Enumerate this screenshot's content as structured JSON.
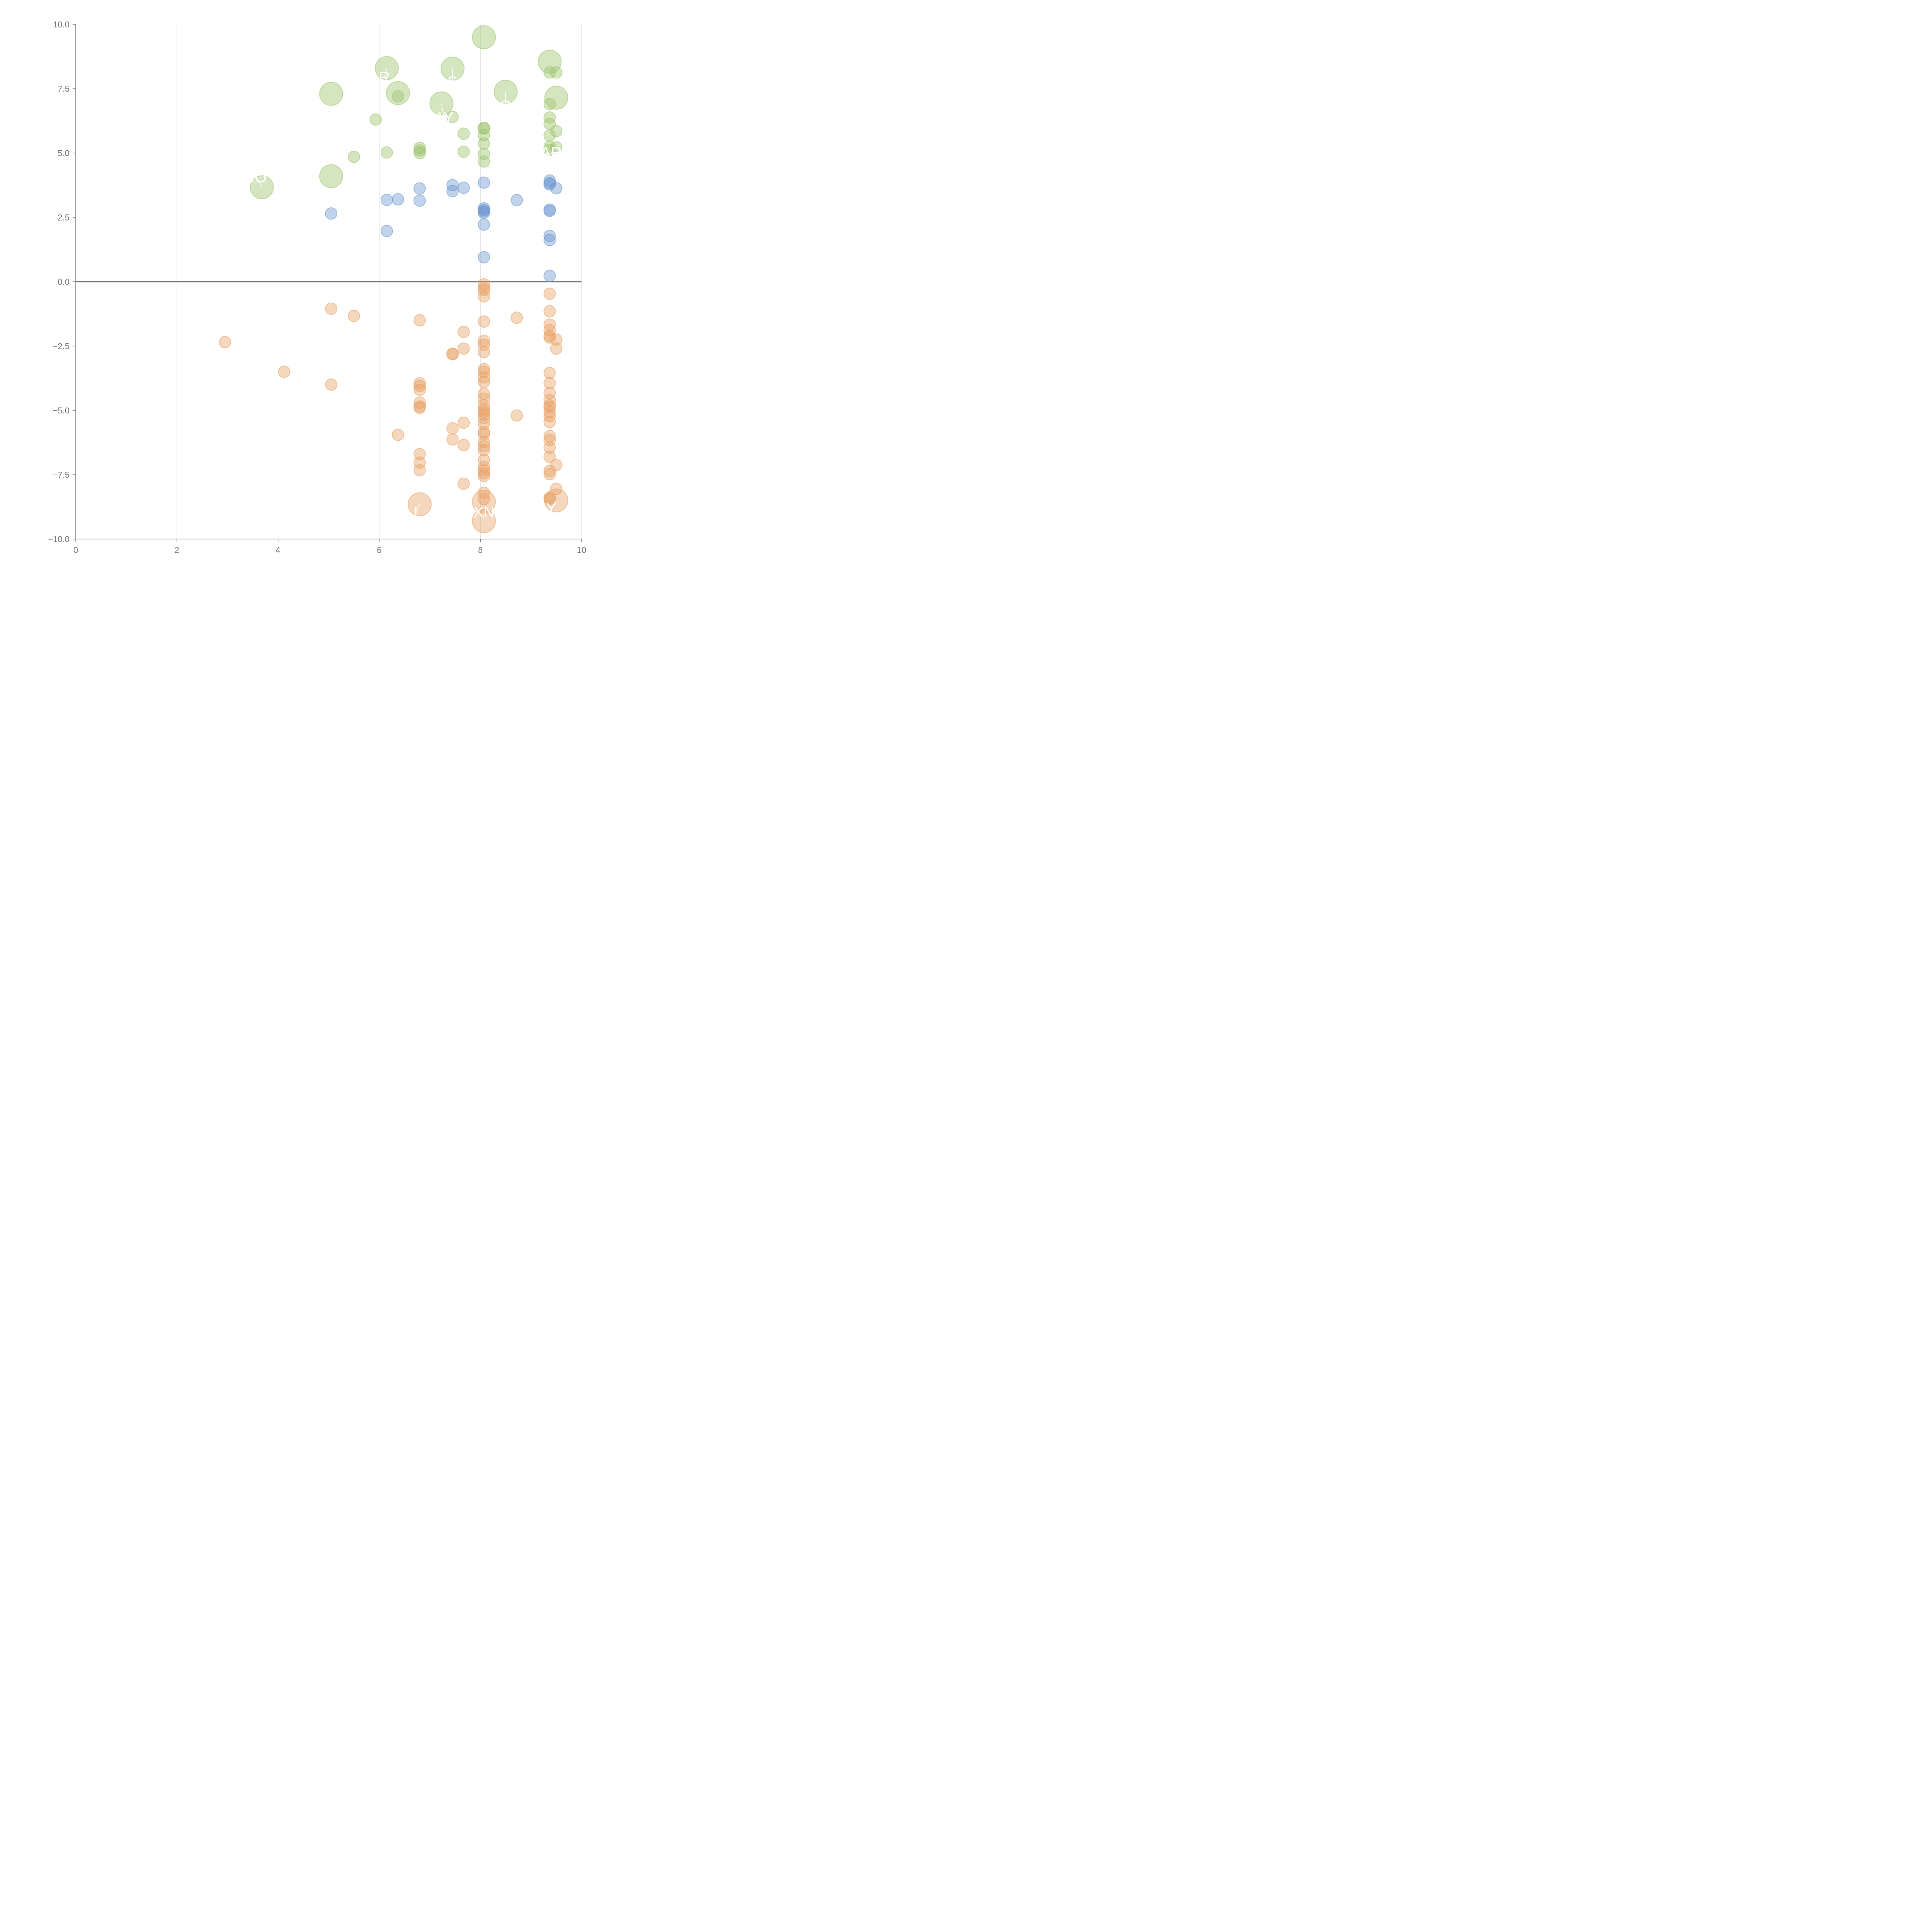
{
  "chart_data": {
    "type": "scatter",
    "title": "",
    "xlabel": "",
    "ylabel": "",
    "xlim": [
      0,
      10
    ],
    "ylim": [
      -10,
      10
    ],
    "grid": "vertical",
    "x_ticks": [
      0,
      2,
      4,
      6,
      8,
      10
    ],
    "y_ticks": [
      -10,
      -7.5,
      -5,
      -2.5,
      0,
      2.5,
      5,
      7.5,
      10
    ],
    "x_tick_labels": [
      "0",
      "2",
      "4",
      "6",
      "8",
      "10"
    ],
    "y_tick_labels": [
      "−10.0",
      "−7.5",
      "−5.0",
      "−2.5",
      "0.0",
      "2.5",
      "5.0",
      "7.5",
      "10.0"
    ],
    "series": [
      {
        "name": "green",
        "color": "#9cc26a",
        "points": [
          [
            3.68,
            3.67,
            3
          ],
          [
            5.05,
            4.1,
            3
          ],
          [
            5.05,
            7.3,
            3
          ],
          [
            5.5,
            4.85,
            1
          ],
          [
            5.93,
            6.3,
            1
          ],
          [
            6.15,
            8.3,
            3
          ],
          [
            6.15,
            5.02,
            1
          ],
          [
            6.37,
            7.33,
            3
          ],
          [
            6.37,
            7.2,
            1
          ],
          [
            6.8,
            5.2,
            1
          ],
          [
            6.8,
            5.1,
            1
          ],
          [
            6.8,
            5.0,
            1
          ],
          [
            7.23,
            6.93,
            3
          ],
          [
            7.45,
            8.28,
            3
          ],
          [
            7.45,
            6.4,
            1
          ],
          [
            7.67,
            5.75,
            1
          ],
          [
            7.67,
            5.05,
            1
          ],
          [
            8.07,
            9.5,
            3
          ],
          [
            8.07,
            5.98,
            1
          ],
          [
            8.07,
            5.95,
            1
          ],
          [
            8.07,
            5.7,
            1
          ],
          [
            8.07,
            5.37,
            1
          ],
          [
            8.07,
            4.97,
            1
          ],
          [
            8.07,
            4.67,
            1
          ],
          [
            8.5,
            7.38,
            3
          ],
          [
            9.37,
            8.55,
            3
          ],
          [
            9.37,
            8.13,
            1
          ],
          [
            9.37,
            6.9,
            1
          ],
          [
            9.37,
            6.38,
            1
          ],
          [
            9.37,
            6.13,
            1
          ],
          [
            9.37,
            5.68,
            1
          ],
          [
            9.37,
            5.25,
            1
          ],
          [
            9.37,
            5.12,
            1
          ],
          [
            9.5,
            7.15,
            3
          ],
          [
            9.5,
            8.13,
            1
          ],
          [
            9.5,
            5.85,
            1
          ],
          [
            9.5,
            5.22,
            1
          ]
        ]
      },
      {
        "name": "blue",
        "color": "#6c96cf",
        "points": [
          [
            5.05,
            2.65,
            1
          ],
          [
            6.15,
            3.18,
            1
          ],
          [
            6.15,
            1.97,
            1
          ],
          [
            6.37,
            3.2,
            1
          ],
          [
            6.8,
            3.62,
            1
          ],
          [
            6.8,
            3.15,
            1
          ],
          [
            7.45,
            3.75,
            1
          ],
          [
            7.45,
            3.52,
            1
          ],
          [
            7.67,
            3.65,
            1
          ],
          [
            8.07,
            3.85,
            1
          ],
          [
            8.07,
            2.85,
            1
          ],
          [
            8.07,
            2.78,
            1
          ],
          [
            8.07,
            2.73,
            1
          ],
          [
            8.07,
            2.68,
            1
          ],
          [
            8.07,
            2.22,
            1
          ],
          [
            8.07,
            0.95,
            1
          ],
          [
            8.72,
            3.17,
            1
          ],
          [
            9.37,
            3.93,
            1
          ],
          [
            9.37,
            3.83,
            1
          ],
          [
            9.37,
            3.78,
            1
          ],
          [
            9.37,
            2.8,
            1
          ],
          [
            9.37,
            2.75,
            1
          ],
          [
            9.37,
            1.78,
            1
          ],
          [
            9.37,
            1.62,
            1
          ],
          [
            9.37,
            0.23,
            1
          ],
          [
            9.5,
            3.63,
            1
          ]
        ]
      },
      {
        "name": "orange",
        "color": "#e8a064",
        "points": [
          [
            2.95,
            -2.35,
            1
          ],
          [
            4.12,
            -3.5,
            1
          ],
          [
            5.05,
            -1.05,
            1
          ],
          [
            5.05,
            -4.0,
            1
          ],
          [
            5.5,
            -1.33,
            1
          ],
          [
            6.37,
            -5.95,
            1
          ],
          [
            6.8,
            -1.5,
            1
          ],
          [
            6.8,
            -3.95,
            1
          ],
          [
            6.8,
            -4.05,
            1
          ],
          [
            6.8,
            -4.2,
            1
          ],
          [
            6.8,
            -4.7,
            1
          ],
          [
            6.8,
            -4.85,
            1
          ],
          [
            6.8,
            -4.9,
            1
          ],
          [
            6.8,
            -6.7,
            1
          ],
          [
            6.8,
            -7.03,
            1
          ],
          [
            6.8,
            -7.33,
            1
          ],
          [
            6.8,
            -8.65,
            3
          ],
          [
            7.45,
            -2.8,
            1
          ],
          [
            7.45,
            -2.82,
            1
          ],
          [
            7.45,
            -5.7,
            1
          ],
          [
            7.45,
            -6.13,
            1
          ],
          [
            7.67,
            -1.95,
            1
          ],
          [
            7.67,
            -2.6,
            1
          ],
          [
            7.67,
            -5.48,
            1
          ],
          [
            7.67,
            -6.35,
            1
          ],
          [
            7.67,
            -7.85,
            1
          ],
          [
            8.07,
            -0.1,
            1
          ],
          [
            8.07,
            -0.25,
            1
          ],
          [
            8.07,
            -0.33,
            1
          ],
          [
            8.07,
            -0.57,
            1
          ],
          [
            8.07,
            -1.55,
            1
          ],
          [
            8.07,
            -2.3,
            1
          ],
          [
            8.07,
            -2.45,
            1
          ],
          [
            8.07,
            -2.73,
            1
          ],
          [
            8.07,
            -3.4,
            1
          ],
          [
            8.07,
            -3.5,
            1
          ],
          [
            8.07,
            -3.72,
            1
          ],
          [
            8.07,
            -3.9,
            1
          ],
          [
            8.07,
            -4.35,
            1
          ],
          [
            8.07,
            -4.55,
            1
          ],
          [
            8.07,
            -4.8,
            1
          ],
          [
            8.07,
            -4.97,
            1
          ],
          [
            8.07,
            -5.05,
            1
          ],
          [
            8.07,
            -5.17,
            1
          ],
          [
            8.07,
            -5.3,
            1
          ],
          [
            8.07,
            -5.52,
            1
          ],
          [
            8.07,
            -5.83,
            1
          ],
          [
            8.07,
            -5.93,
            1
          ],
          [
            8.07,
            -6.23,
            1
          ],
          [
            8.07,
            -6.4,
            1
          ],
          [
            8.07,
            -6.55,
            1
          ],
          [
            8.07,
            -6.93,
            1
          ],
          [
            8.07,
            -7.2,
            1
          ],
          [
            8.07,
            -7.33,
            1
          ],
          [
            8.07,
            -7.45,
            1
          ],
          [
            8.07,
            -7.55,
            1
          ],
          [
            8.07,
            -8.2,
            1
          ],
          [
            8.07,
            -8.45,
            1
          ],
          [
            8.07,
            -8.55,
            3
          ],
          [
            8.07,
            -9.3,
            3
          ],
          [
            8.72,
            -1.4,
            1
          ],
          [
            8.72,
            -5.2,
            1
          ],
          [
            9.37,
            -0.47,
            1
          ],
          [
            9.37,
            -1.15,
            1
          ],
          [
            9.37,
            -1.67,
            1
          ],
          [
            9.37,
            -1.88,
            1
          ],
          [
            9.37,
            -2.1,
            1
          ],
          [
            9.37,
            -2.17,
            1
          ],
          [
            9.37,
            -3.55,
            1
          ],
          [
            9.37,
            -3.95,
            1
          ],
          [
            9.37,
            -4.32,
            1
          ],
          [
            9.37,
            -4.6,
            1
          ],
          [
            9.37,
            -4.8,
            1
          ],
          [
            9.37,
            -4.88,
            1
          ],
          [
            9.37,
            -5.07,
            1
          ],
          [
            9.37,
            -5.22,
            1
          ],
          [
            9.37,
            -5.45,
            1
          ],
          [
            9.37,
            -6.0,
            1
          ],
          [
            9.37,
            -6.15,
            1
          ],
          [
            9.37,
            -6.45,
            1
          ],
          [
            9.37,
            -6.8,
            1
          ],
          [
            9.37,
            -7.35,
            1
          ],
          [
            9.37,
            -7.48,
            1
          ],
          [
            9.37,
            -8.4,
            1
          ],
          [
            9.37,
            -8.45,
            1
          ],
          [
            9.5,
            -2.25,
            1
          ],
          [
            9.5,
            -2.6,
            1
          ],
          [
            9.5,
            -7.12,
            1
          ],
          [
            9.5,
            -8.05,
            1
          ],
          [
            9.5,
            -8.5,
            3
          ]
        ]
      }
    ],
    "annotations": [
      {
        "text": "JO",
        "x": 3.68,
        "y": 3.67,
        "dx": -0.1,
        "dy": 0.4
      },
      {
        "text": "R",
        "x": 6.15,
        "y": 8.3,
        "dx": -0.05,
        "dy": -0.35
      },
      {
        "text": "S",
        "x": 7.45,
        "y": 8.28,
        "dx": 0.0,
        "dy": -0.5
      },
      {
        "text": "O",
        "x": 8.5,
        "y": 7.38,
        "dx": 0.0,
        "dy": -0.55
      },
      {
        "text": "AY",
        "x": 7.23,
        "y": 6.93,
        "dx": 0.05,
        "dy": -0.55
      },
      {
        "text": "AR",
        "x": 9.5,
        "y": 5.22,
        "dx": -0.1,
        "dy": -0.2
      },
      {
        "text": "XN",
        "x": 8.07,
        "y": -9.3,
        "dx": 0.0,
        "dy": 0.35
      },
      {
        "text": "I",
        "x": 6.8,
        "y": -8.65,
        "dx": -0.08,
        "dy": -0.3
      },
      {
        "text": "Y",
        "x": 9.5,
        "y": -8.5,
        "dx": -0.1,
        "dy": -0.3
      }
    ]
  }
}
